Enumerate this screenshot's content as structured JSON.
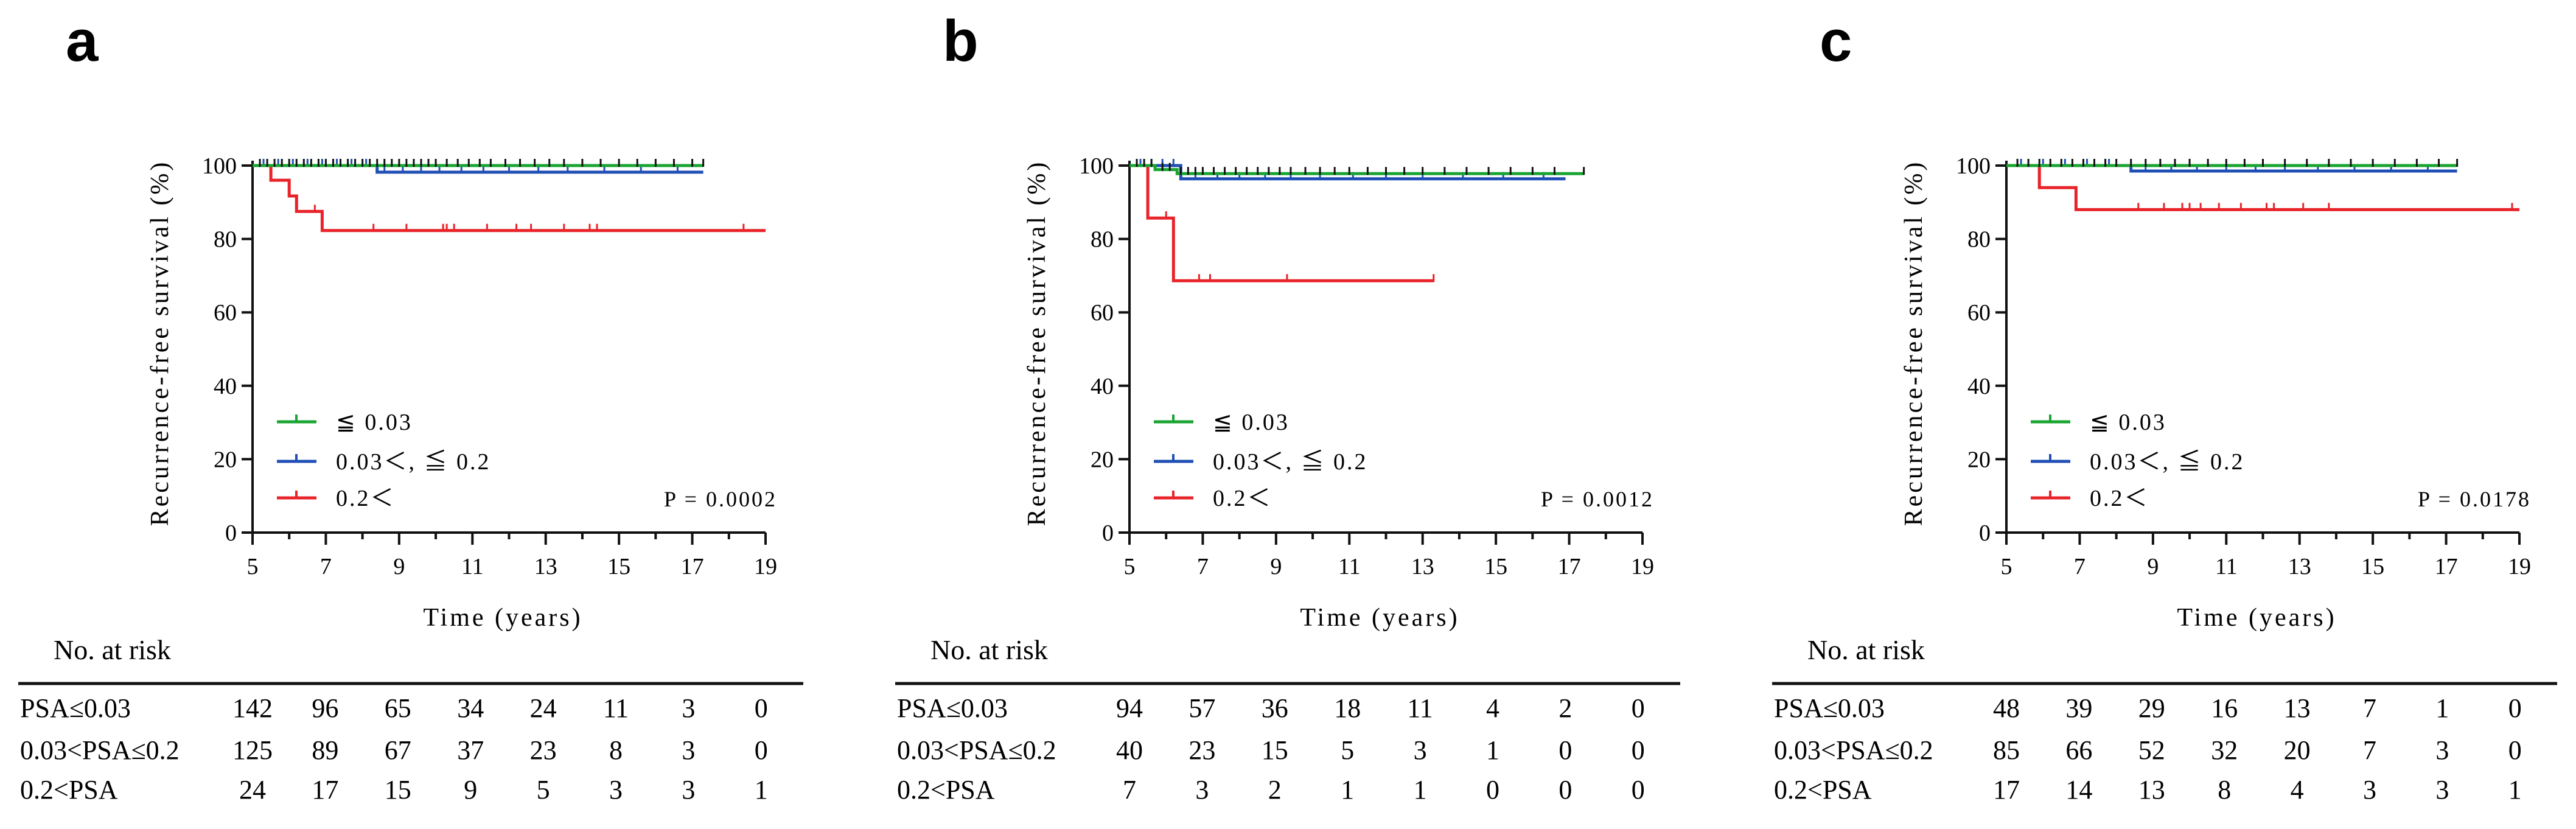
{
  "chart_data": [
    {
      "type": "line",
      "subtype": "kaplan-meier",
      "panel_label": "a",
      "xlabel": "Time (years)",
      "ylabel": "Recurrence-free survival (%)",
      "xlim": [
        5,
        19
      ],
      "ylim": [
        0,
        100
      ],
      "x_ticks": [
        "5",
        "7",
        "9",
        "11",
        "13",
        "15",
        "17",
        "19"
      ],
      "y_ticks": [
        "0",
        "20",
        "40",
        "60",
        "80",
        "100"
      ],
      "p_value": "P = 0.0002",
      "series": [
        {
          "name": "≦ 0.03",
          "color": "#1aa532",
          "steps": [
            [
              5,
              100
            ],
            [
              17.3,
              100
            ]
          ],
          "censor": [
            5.2,
            5.4,
            5.6,
            5.8,
            6,
            6.2,
            6.4,
            6.6,
            6.8,
            7,
            7.2,
            7.4,
            7.6,
            7.8,
            8,
            8.2,
            8.4,
            8.6,
            8.8,
            9,
            9.2,
            9.4,
            9.6,
            9.8,
            10,
            10.3,
            10.6,
            10.9,
            11.2,
            11.5,
            11.9,
            12.3,
            12.7,
            13.1,
            13.5,
            14,
            14.5,
            15,
            15.5,
            16,
            16.5,
            17,
            17.3
          ]
        },
        {
          "name": "0.03＜, ≦ 0.2",
          "color": "#1f4fb5",
          "steps": [
            [
              5,
              100
            ],
            [
              8.4,
              100
            ],
            [
              8.4,
              98.2
            ],
            [
              17.3,
              98.2
            ]
          ],
          "censor": [
            5.3,
            5.7,
            6.1,
            6.5,
            6.9,
            7.3,
            7.7,
            8.1,
            8.6,
            9.1,
            9.6,
            10.1,
            10.7,
            11.3,
            12,
            12.8,
            13.6,
            14.6,
            15.6,
            16.6
          ]
        },
        {
          "name": "0.2＜",
          "color": "#e8232a",
          "steps": [
            [
              5,
              100
            ],
            [
              5.5,
              100
            ],
            [
              5.5,
              96
            ],
            [
              6,
              96
            ],
            [
              6,
              91.7
            ],
            [
              6.2,
              91.7
            ],
            [
              6.2,
              87.5
            ],
            [
              6.9,
              87.5
            ],
            [
              6.9,
              82.3
            ],
            [
              19,
              82.3
            ]
          ],
          "censor": [
            6.7,
            8.3,
            9.2,
            10.2,
            10.3,
            10.5,
            11.4,
            12.2,
            12.6,
            13.5,
            14.2,
            14.4,
            18.4
          ]
        }
      ],
      "risk_table": {
        "title": "No. at risk",
        "rows": [
          {
            "label": "PSA≤0.03",
            "values": [
              "142",
              "96",
              "65",
              "34",
              "24",
              "11",
              "3",
              "0"
            ]
          },
          {
            "label": "0.03<PSA≤0.2",
            "values": [
              "125",
              "89",
              "67",
              "37",
              "23",
              "8",
              "3",
              "0"
            ]
          },
          {
            "label": "0.2<PSA",
            "values": [
              "24",
              "17",
              "15",
              "9",
              "5",
              "3",
              "3",
              "1"
            ]
          }
        ]
      }
    },
    {
      "type": "line",
      "subtype": "kaplan-meier",
      "panel_label": "b",
      "xlabel": "Time (years)",
      "ylabel": "Recurrence-free survival (%)",
      "xlim": [
        5,
        19
      ],
      "ylim": [
        0,
        100
      ],
      "x_ticks": [
        "5",
        "7",
        "9",
        "11",
        "13",
        "15",
        "17",
        "19"
      ],
      "y_ticks": [
        "0",
        "20",
        "40",
        "60",
        "80",
        "100"
      ],
      "p_value": "P = 0.0012",
      "series": [
        {
          "name": "≦ 0.03",
          "color": "#1aa532",
          "steps": [
            [
              5,
              100
            ],
            [
              5.7,
              100
            ],
            [
              5.7,
              98.9
            ],
            [
              6.3,
              98.9
            ],
            [
              6.3,
              97.8
            ],
            [
              17.4,
              97.8
            ]
          ],
          "censor": [
            5.2,
            5.4,
            5.6,
            5.9,
            6.1,
            6.4,
            6.6,
            6.8,
            7,
            7.3,
            7.6,
            7.9,
            8.2,
            8.5,
            8.8,
            9.1,
            9.4,
            9.8,
            10.2,
            10.6,
            11,
            11.5,
            12,
            12.5,
            13,
            13.6,
            14.2,
            14.8,
            15.4,
            16,
            16.6,
            17.4
          ]
        },
        {
          "name": "0.03＜, ≦ 0.2",
          "color": "#1f4fb5",
          "steps": [
            [
              5,
              100
            ],
            [
              6.4,
              100
            ],
            [
              6.4,
              96.4
            ],
            [
              16.9,
              96.4
            ]
          ],
          "censor": [
            5.3,
            5.6,
            5.9,
            6.2,
            6.8,
            7.4,
            8,
            8.7,
            9.4,
            10.2,
            11.1,
            12,
            13,
            14.1,
            15.2,
            16.3
          ]
        },
        {
          "name": "0.2＜",
          "color": "#e8232a",
          "steps": [
            [
              5,
              100
            ],
            [
              5.5,
              100
            ],
            [
              5.5,
              85.7
            ],
            [
              6.2,
              85.7
            ],
            [
              6.2,
              68.6
            ],
            [
              13.3,
              68.6
            ]
          ],
          "censor": [
            6,
            6.9,
            7.2,
            9.3,
            13.3
          ]
        }
      ],
      "risk_table": {
        "title": "No. at risk",
        "rows": [
          {
            "label": "PSA≤0.03",
            "values": [
              "94",
              "57",
              "36",
              "18",
              "11",
              "4",
              "2",
              "0"
            ]
          },
          {
            "label": "0.03<PSA≤0.2",
            "values": [
              "40",
              "23",
              "15",
              "5",
              "3",
              "1",
              "0",
              "0"
            ]
          },
          {
            "label": "0.2<PSA",
            "values": [
              "7",
              "3",
              "2",
              "1",
              "1",
              "0",
              "0",
              "0"
            ]
          }
        ]
      }
    },
    {
      "type": "line",
      "subtype": "kaplan-meier",
      "panel_label": "c",
      "xlabel": "Time (years)",
      "ylabel": "Recurrence-free survival (%)",
      "xlim": [
        5,
        19
      ],
      "ylim": [
        0,
        100
      ],
      "x_ticks": [
        "5",
        "7",
        "9",
        "11",
        "13",
        "15",
        "17",
        "19"
      ],
      "y_ticks": [
        "0",
        "20",
        "40",
        "60",
        "80",
        "100"
      ],
      "p_value": "P = 0.0178",
      "series": [
        {
          "name": "≦ 0.03",
          "color": "#1aa532",
          "steps": [
            [
              5,
              100
            ],
            [
              17.3,
              100
            ]
          ],
          "censor": [
            5.3,
            5.6,
            5.9,
            6.2,
            6.5,
            6.8,
            7.1,
            7.4,
            7.7,
            8,
            8.4,
            8.8,
            9.2,
            9.6,
            10,
            10.5,
            11,
            11.5,
            12,
            12.6,
            13.2,
            13.8,
            14.4,
            15,
            15.6,
            16.2,
            16.8,
            17.3
          ]
        },
        {
          "name": "0.03＜, ≦ 0.2",
          "color": "#1f4fb5",
          "steps": [
            [
              5,
              100
            ],
            [
              8.4,
              100
            ],
            [
              8.4,
              98.5
            ],
            [
              17.3,
              98.5
            ]
          ],
          "censor": [
            5.4,
            6,
            6.6,
            7.2,
            7.8,
            8.8,
            9.5,
            10.2,
            11,
            11.8,
            12.6,
            13.5,
            14.5,
            15.5,
            16.5
          ]
        },
        {
          "name": "0.2＜",
          "color": "#e8232a",
          "steps": [
            [
              5,
              100
            ],
            [
              5.9,
              100
            ],
            [
              5.9,
              94
            ],
            [
              6.9,
              94
            ],
            [
              6.9,
              88
            ],
            [
              19,
              88
            ]
          ],
          "censor": [
            8.6,
            9.3,
            9.8,
            10,
            10.3,
            10.8,
            11.4,
            12.1,
            12.3,
            13.1,
            13.8,
            18.8
          ]
        }
      ],
      "risk_table": {
        "title": "No. at risk",
        "rows": [
          {
            "label": "PSA≤0.03",
            "values": [
              "48",
              "39",
              "29",
              "16",
              "13",
              "7",
              "1",
              "0"
            ]
          },
          {
            "label": "0.03<PSA≤0.2",
            "values": [
              "85",
              "66",
              "52",
              "32",
              "20",
              "7",
              "3",
              "0"
            ]
          },
          {
            "label": "0.2<PSA",
            "values": [
              "17",
              "14",
              "13",
              "8",
              "4",
              "3",
              "3",
              "1"
            ]
          }
        ]
      }
    }
  ]
}
